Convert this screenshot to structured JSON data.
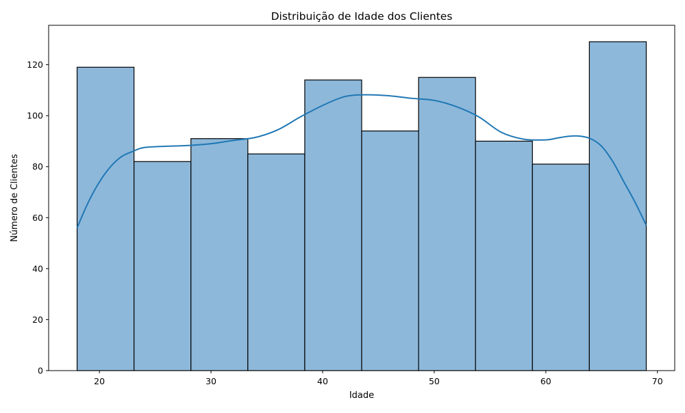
{
  "chart_data": {
    "type": "bar",
    "title": "Distribuição de Idade dos Clientes",
    "xlabel": "Idade",
    "ylabel": "Número de Clientes",
    "xlim": [
      15.45,
      71.55
    ],
    "ylim": [
      0,
      135.45
    ],
    "x_ticks": [
      20,
      30,
      40,
      50,
      60,
      70
    ],
    "y_ticks": [
      0,
      20,
      40,
      60,
      80,
      100,
      120
    ],
    "bins": [
      {
        "start": 18.0,
        "end": 23.1,
        "value": 119
      },
      {
        "start": 23.1,
        "end": 28.2,
        "value": 82
      },
      {
        "start": 28.2,
        "end": 33.3,
        "value": 91
      },
      {
        "start": 33.3,
        "end": 38.4,
        "value": 85
      },
      {
        "start": 38.4,
        "end": 43.5,
        "value": 114
      },
      {
        "start": 43.5,
        "end": 48.6,
        "value": 94
      },
      {
        "start": 48.6,
        "end": 53.7,
        "value": 115
      },
      {
        "start": 53.7,
        "end": 58.8,
        "value": 90
      },
      {
        "start": 58.8,
        "end": 63.9,
        "value": 81
      },
      {
        "start": 63.9,
        "end": 69.0,
        "value": 129
      }
    ],
    "kde": {
      "x": [
        18,
        19,
        20,
        21,
        22,
        23,
        24,
        26,
        28,
        30,
        32,
        34,
        36,
        38,
        40,
        42,
        44,
        46,
        48,
        50,
        52,
        54,
        56,
        58,
        60,
        61,
        62,
        63,
        64,
        65,
        66,
        67,
        68,
        69
      ],
      "y": [
        56,
        66,
        74,
        80,
        84,
        86,
        87.5,
        88,
        88.3,
        89,
        90.3,
        91.5,
        94.5,
        99.5,
        104,
        107.5,
        108.2,
        107.8,
        106.8,
        106,
        103.5,
        99.5,
        93.5,
        90.8,
        90.5,
        91.2,
        91.9,
        92,
        91,
        88,
        82,
        74,
        66,
        57
      ]
    },
    "bar_color": "#8db8da",
    "bar_edge_color": "#000000",
    "kde_color": "#1f77b4",
    "grid": false,
    "legend": "none"
  }
}
